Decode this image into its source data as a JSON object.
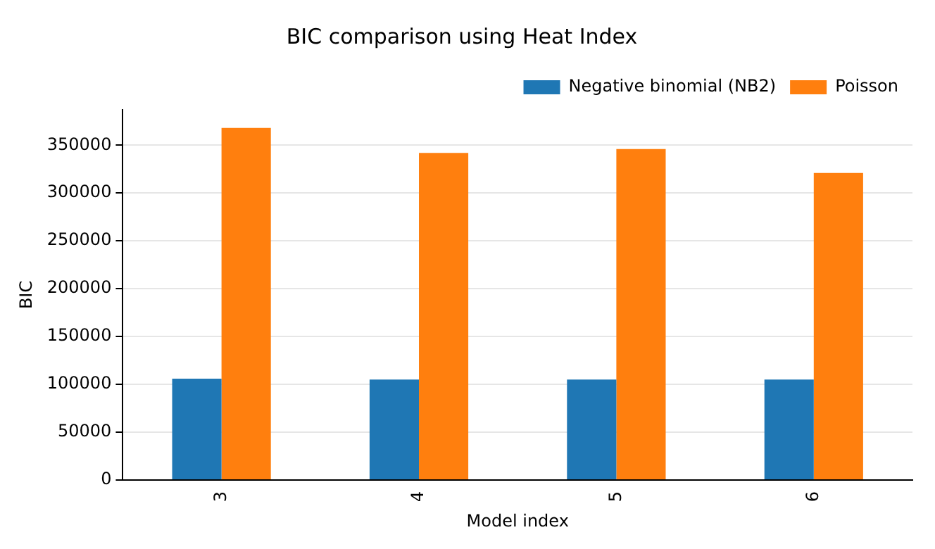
{
  "chart_data": {
    "type": "bar",
    "title": "BIC comparison using Heat Index",
    "xlabel": "Model index",
    "ylabel": "BIC",
    "categories": [
      "3",
      "4",
      "5",
      "6"
    ],
    "series": [
      {
        "name": "Negative binomial (NB2)",
        "color": "#1f77b4",
        "values": [
          106000,
          105000,
          105000,
          105000
        ]
      },
      {
        "name": "Poisson",
        "color": "#ff7f0e",
        "values": [
          368000,
          342000,
          346000,
          321000
        ]
      }
    ],
    "ylim": [
      0,
      387000
    ],
    "yticks": [
      0,
      50000,
      100000,
      150000,
      200000,
      250000,
      300000,
      350000
    ],
    "grid": "y",
    "legend": "top right"
  }
}
